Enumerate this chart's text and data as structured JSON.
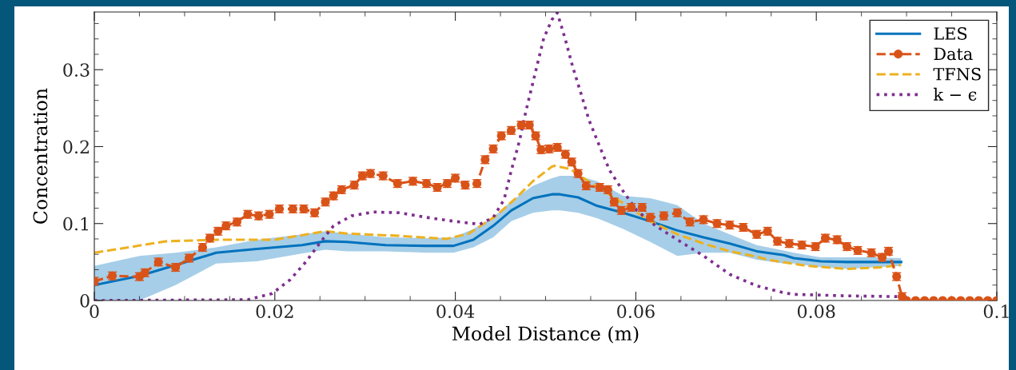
{
  "chart_data": {
    "type": "line",
    "xlabel": "Model Distance (m)",
    "ylabel": "Concentration",
    "xlim": [
      0,
      0.1
    ],
    "ylim": [
      0,
      0.375
    ],
    "xticks": [
      0,
      0.02,
      0.04,
      0.06,
      0.08,
      0.1
    ],
    "yticks": [
      0,
      0.1,
      0.2,
      0.3
    ],
    "grid": false,
    "legend": "top right",
    "series": [
      {
        "name": "LES",
        "color": "#0072bd",
        "line_style": "solid",
        "marker": "none",
        "x": [
          0,
          0.005,
          0.009,
          0.0135,
          0.018,
          0.023,
          0.0256,
          0.028,
          0.0323,
          0.0368,
          0.0398,
          0.042,
          0.0442,
          0.0462,
          0.0486,
          0.0507,
          0.0516,
          0.0536,
          0.0557,
          0.0586,
          0.0616,
          0.0646,
          0.0675,
          0.0704,
          0.0734,
          0.0764,
          0.0775,
          0.0805,
          0.0834,
          0.0864,
          0.0894
        ],
        "values": [
          0.02,
          0.032,
          0.046,
          0.062,
          0.067,
          0.072,
          0.077,
          0.076,
          0.072,
          0.071,
          0.071,
          0.079,
          0.097,
          0.117,
          0.133,
          0.138,
          0.138,
          0.134,
          0.123,
          0.114,
          0.103,
          0.091,
          0.082,
          0.074,
          0.064,
          0.059,
          0.055,
          0.051,
          0.05,
          0.05,
          0.05
        ],
        "lower": [
          0.0,
          0.0,
          0.02,
          0.048,
          0.051,
          0.061,
          0.066,
          0.064,
          0.064,
          0.062,
          0.062,
          0.069,
          0.082,
          0.103,
          0.114,
          0.117,
          0.117,
          0.114,
          0.107,
          0.093,
          0.076,
          0.058,
          0.062,
          0.062,
          0.053,
          0.048,
          0.048,
          0.043,
          0.041,
          0.043,
          0.045
        ],
        "upper": [
          0.045,
          0.058,
          0.062,
          0.069,
          0.079,
          0.086,
          0.09,
          0.087,
          0.082,
          0.081,
          0.082,
          0.093,
          0.108,
          0.129,
          0.149,
          0.159,
          0.162,
          0.162,
          0.155,
          0.136,
          0.133,
          0.124,
          0.1,
          0.086,
          0.072,
          0.065,
          0.062,
          0.056,
          0.056,
          0.056,
          0.055
        ]
      },
      {
        "name": "Data",
        "color": "#d95319",
        "line_style": "dashed",
        "marker": "circle",
        "x": [
          0,
          0.002,
          0.005,
          0.0056,
          0.0071,
          0.009,
          0.0105,
          0.012,
          0.0128,
          0.0137,
          0.0146,
          0.0158,
          0.017,
          0.0182,
          0.0194,
          0.0205,
          0.022,
          0.0232,
          0.0244,
          0.0256,
          0.0265,
          0.0274,
          0.0288,
          0.0297,
          0.0306,
          0.032,
          0.0336,
          0.0353,
          0.0368,
          0.038,
          0.0391,
          0.04,
          0.0411,
          0.0424,
          0.0433,
          0.0442,
          0.0451,
          0.0462,
          0.0473,
          0.0482,
          0.0489,
          0.0495,
          0.0504,
          0.0513,
          0.0522,
          0.0529,
          0.0536,
          0.0545,
          0.056,
          0.0569,
          0.0576,
          0.0584,
          0.0595,
          0.0607,
          0.0616,
          0.0631,
          0.0646,
          0.066,
          0.0675,
          0.069,
          0.0704,
          0.0719,
          0.0734,
          0.0746,
          0.0757,
          0.077,
          0.0784,
          0.0799,
          0.081,
          0.0823,
          0.0834,
          0.0846,
          0.0861,
          0.0873,
          0.088,
          0.0889,
          0.0895,
          0.09,
          0.091,
          0.092,
          0.093,
          0.094,
          0.095,
          0.096,
          0.097,
          0.098,
          0.099,
          0.1
        ],
        "values": [
          0.025,
          0.032,
          0.031,
          0.036,
          0.05,
          0.043,
          0.055,
          0.069,
          0.081,
          0.09,
          0.097,
          0.102,
          0.112,
          0.11,
          0.112,
          0.119,
          0.119,
          0.119,
          0.114,
          0.128,
          0.136,
          0.144,
          0.15,
          0.162,
          0.165,
          0.162,
          0.152,
          0.155,
          0.152,
          0.147,
          0.152,
          0.159,
          0.15,
          0.152,
          0.183,
          0.197,
          0.214,
          0.221,
          0.228,
          0.228,
          0.214,
          0.196,
          0.197,
          0.199,
          0.19,
          0.18,
          0.165,
          0.149,
          0.147,
          0.144,
          0.128,
          0.117,
          0.121,
          0.121,
          0.108,
          0.11,
          0.114,
          0.102,
          0.105,
          0.1,
          0.098,
          0.095,
          0.086,
          0.09,
          0.077,
          0.074,
          0.072,
          0.07,
          0.081,
          0.079,
          0.07,
          0.065,
          0.062,
          0.056,
          0.064,
          0.031,
          0.005,
          0,
          0,
          0,
          0,
          0,
          0,
          0,
          0,
          0,
          0,
          0
        ],
        "errors": [
          0.005,
          0.005,
          0.005,
          0.005,
          0.005,
          0.005,
          0.005,
          0.005,
          0.005,
          0.005,
          0.005,
          0.005,
          0.005,
          0.005,
          0.005,
          0.005,
          0.005,
          0.005,
          0.005,
          0.005,
          0.005,
          0.005,
          0.005,
          0.005,
          0.005,
          0.005,
          0.005,
          0.005,
          0.005,
          0.005,
          0.005,
          0.005,
          0.005,
          0.005,
          0.005,
          0.005,
          0.005,
          0.005,
          0.005,
          0.005,
          0.005,
          0.005,
          0.005,
          0.005,
          0.005,
          0.005,
          0.005,
          0.005,
          0.005,
          0.005,
          0.005,
          0.005,
          0.005,
          0.005,
          0.005,
          0.005,
          0.005,
          0.005,
          0.005,
          0.005,
          0.005,
          0.005,
          0.005,
          0.005,
          0.005,
          0.005,
          0.005,
          0.005,
          0.005,
          0.005,
          0.005,
          0.005,
          0.005,
          0.005,
          0.005,
          0.005,
          0.005,
          null,
          null,
          null,
          null,
          null,
          null,
          null,
          null,
          null,
          null,
          null
        ]
      },
      {
        "name": "TFNS",
        "color": "#edb120",
        "line_style": "dashed",
        "marker": "none",
        "x": [
          0,
          0.008,
          0.014,
          0.02,
          0.0256,
          0.028,
          0.0338,
          0.039,
          0.0415,
          0.0445,
          0.0468,
          0.0486,
          0.0507,
          0.051,
          0.0527,
          0.0551,
          0.058,
          0.0616,
          0.0646,
          0.0675,
          0.0704,
          0.0734,
          0.0746,
          0.079,
          0.0834,
          0.087,
          0.0894
        ],
        "values": [
          0.062,
          0.077,
          0.079,
          0.079,
          0.09,
          0.087,
          0.084,
          0.08,
          0.087,
          0.11,
          0.134,
          0.155,
          0.174,
          0.175,
          0.171,
          0.152,
          0.131,
          0.103,
          0.086,
          0.074,
          0.064,
          0.057,
          0.053,
          0.045,
          0.041,
          0.043,
          0.046
        ]
      },
      {
        "name": "k − ϵ",
        "color": "#7e2f8e",
        "line_style": "dotted",
        "marker": "none",
        "x": [
          0,
          0.017,
          0.0197,
          0.0217,
          0.0235,
          0.025,
          0.0265,
          0.0285,
          0.0309,
          0.0338,
          0.0368,
          0.0398,
          0.0427,
          0.0442,
          0.0454,
          0.0462,
          0.0471,
          0.0478,
          0.0498,
          0.0507,
          0.0513,
          0.0522,
          0.053,
          0.0539,
          0.0548,
          0.056,
          0.0571,
          0.0586,
          0.0601,
          0.0622,
          0.0646,
          0.0675,
          0.0704,
          0.0734,
          0.0764,
          0.0775,
          0.0834,
          0.0892
        ],
        "values": [
          0,
          0.001,
          0.009,
          0.027,
          0.051,
          0.075,
          0.097,
          0.11,
          0.115,
          0.114,
          0.108,
          0.103,
          0.099,
          0.108,
          0.131,
          0.169,
          0.207,
          0.245,
          0.341,
          0.365,
          0.374,
          0.339,
          0.304,
          0.27,
          0.235,
          0.2,
          0.169,
          0.142,
          0.117,
          0.097,
          0.079,
          0.058,
          0.034,
          0.019,
          0.01,
          0.008,
          0.006,
          0.005
        ]
      }
    ]
  }
}
